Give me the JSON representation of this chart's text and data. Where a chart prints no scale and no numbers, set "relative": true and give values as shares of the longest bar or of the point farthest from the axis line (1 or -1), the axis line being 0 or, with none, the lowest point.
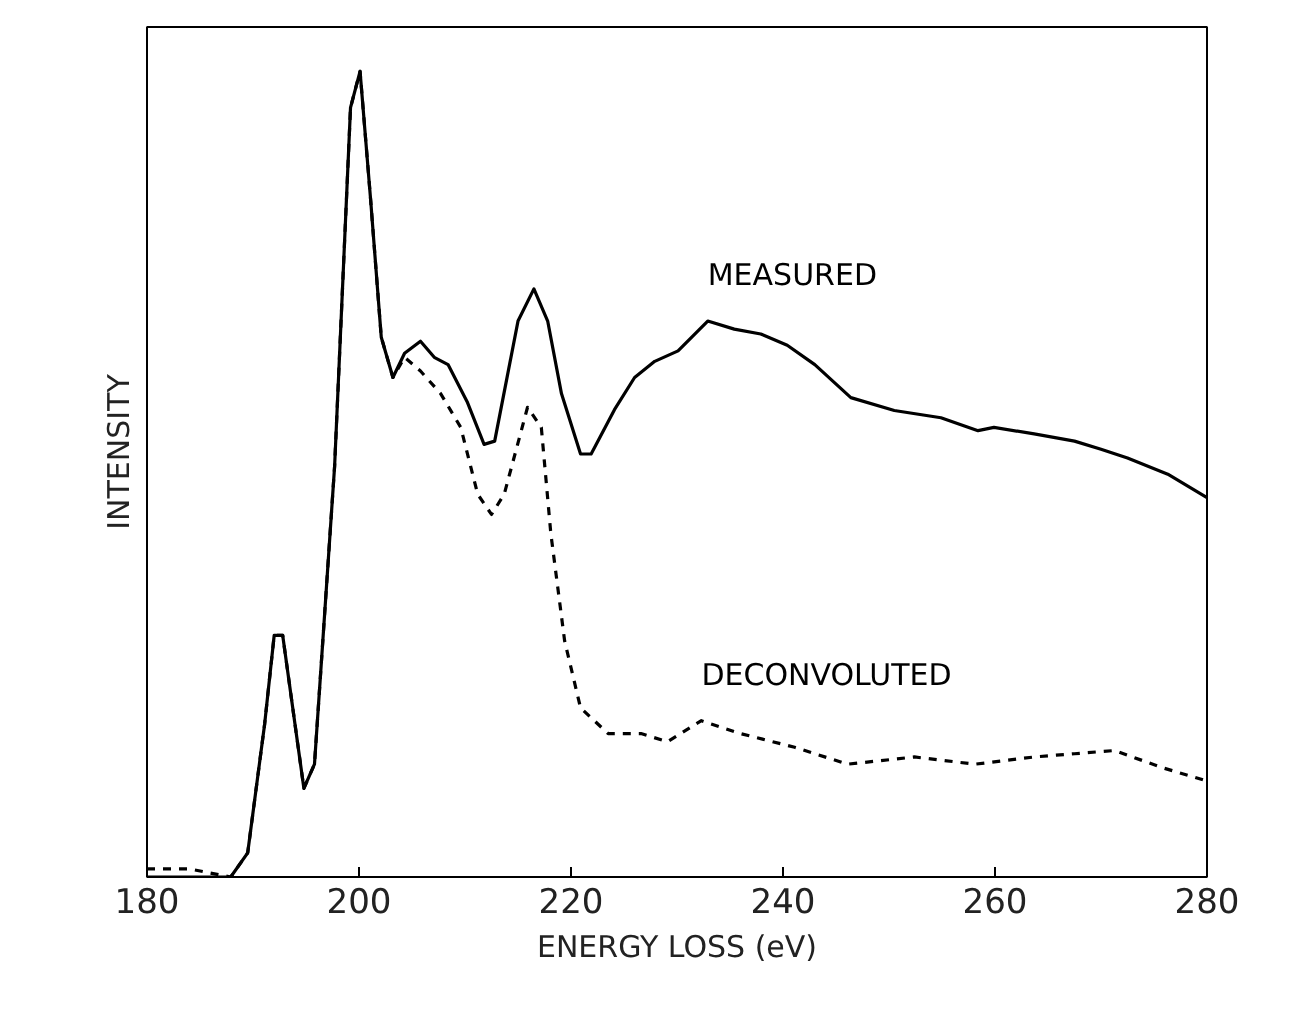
{
  "chart_data": {
    "type": "line",
    "xlabel": "ENERGY LOSS (eV)",
    "ylabel": "INTENSITY",
    "relative": true,
    "xlim": [
      180,
      280
    ],
    "xticks": [
      180,
      200,
      220,
      240,
      260,
      280
    ],
    "grid": false,
    "series": [
      {
        "name": "MEASURED",
        "color": "#000000",
        "line_style": "solid",
        "x": [
          180,
          187.9,
          189.5,
          191.1,
          192.0,
          192.8,
          194.8,
          195.8,
          197.7,
          199.2,
          200.1,
          201.1,
          202.1,
          203.2,
          204.3,
          205.8,
          207.1,
          208.4,
          210.2,
          211.8,
          212.8,
          215.0,
          216.5,
          217.8,
          219.1,
          220.9,
          221.9,
          224.1,
          226.0,
          227.9,
          230.1,
          232.9,
          235.4,
          237.9,
          240.4,
          243.0,
          246.4,
          250.5,
          254.9,
          258.4,
          259.9,
          263.7,
          267.5,
          270.0,
          272.5,
          276.3,
          280
        ],
        "values": [
          0,
          0,
          0.03,
          0.19,
          0.3,
          0.3,
          0.11,
          0.14,
          0.51,
          0.955,
          1,
          0.84,
          0.67,
          0.62,
          0.65,
          0.665,
          0.645,
          0.636,
          0.59,
          0.537,
          0.541,
          0.69,
          0.73,
          0.69,
          0.6,
          0.525,
          0.525,
          0.58,
          0.62,
          0.64,
          0.653,
          0.69,
          0.68,
          0.674,
          0.66,
          0.636,
          0.595,
          0.579,
          0.57,
          0.554,
          0.558,
          0.55,
          0.541,
          0.531,
          0.52,
          0.5,
          0.471
        ]
      },
      {
        "name": "DECONVOLUTED",
        "color": "#000000",
        "line_style": "dashed",
        "x": [
          180,
          184,
          187.9,
          189.5,
          191.1,
          192.0,
          192.8,
          194.8,
          195.8,
          197.7,
          199.2,
          200.1,
          201.1,
          202.1,
          203.2,
          204.3,
          205.8,
          207.7,
          209.6,
          211.2,
          212.5,
          213.7,
          215.9,
          217.2,
          218.1,
          219.4,
          220.9,
          223.5,
          226.6,
          229.1,
          232.3,
          236.0,
          241.1,
          246.1,
          252.4,
          258.1,
          263.7,
          267.5,
          271.3,
          275.7,
          279.8
        ],
        "values": [
          0.01,
          0.01,
          0,
          0.03,
          0.19,
          0.3,
          0.3,
          0.11,
          0.14,
          0.51,
          0.955,
          1,
          0.84,
          0.67,
          0.62,
          0.645,
          0.628,
          0.6,
          0.558,
          0.475,
          0.45,
          0.475,
          0.583,
          0.558,
          0.426,
          0.293,
          0.21,
          0.178,
          0.178,
          0.168,
          0.194,
          0.178,
          0.161,
          0.14,
          0.149,
          0.14,
          0.149,
          0.153,
          0.157,
          0.136,
          0.12
        ]
      }
    ]
  }
}
